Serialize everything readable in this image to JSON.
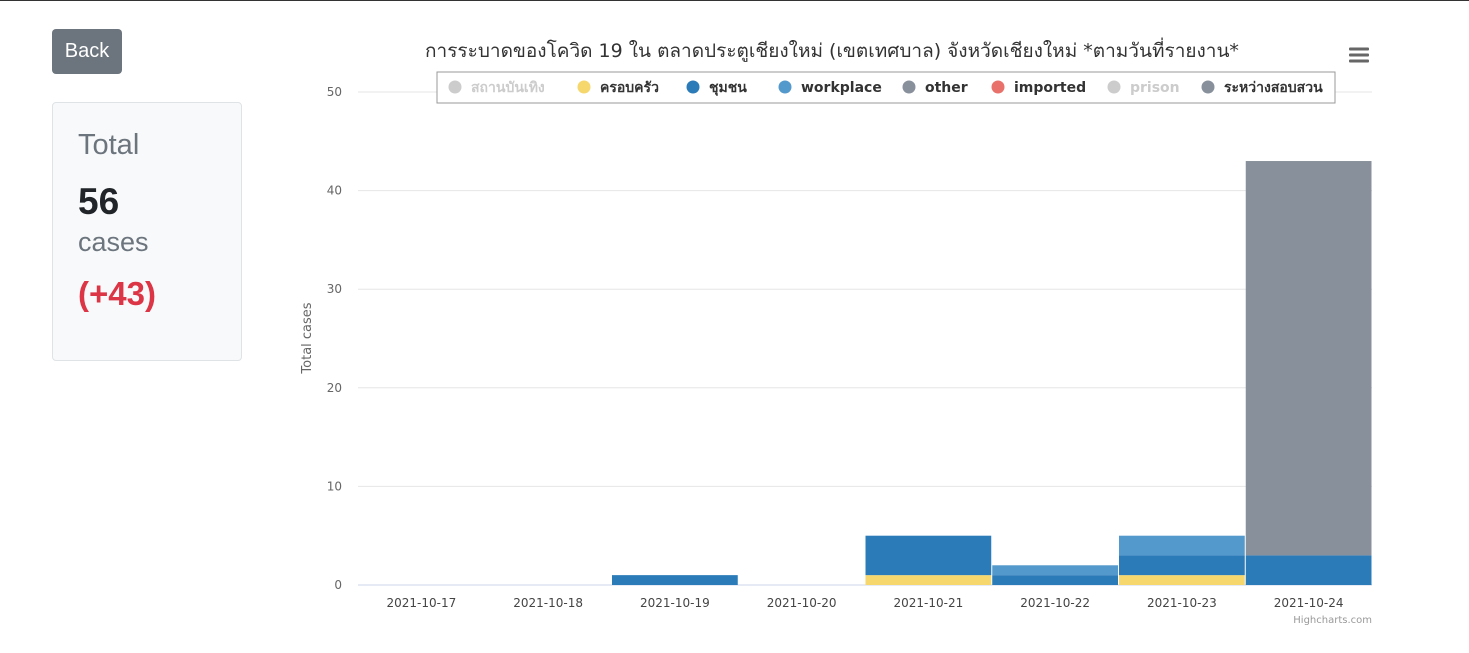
{
  "back_label": "Back",
  "summary": {
    "title": "Total",
    "count": "56",
    "unit": "cases",
    "delta": "(+43)"
  },
  "credits": "Highcharts.com",
  "menu_icon": "hamburger-menu-icon",
  "colors": {
    "button_bg": "#6c757d",
    "delta_red": "#dc3545"
  },
  "chart_data": {
    "type": "bar",
    "stacked": true,
    "title": "การระบาดของโควิด 19 ใน ตลาดประตูเชียงใหม่ (เขตเทศบาล) จังหวัดเชียงใหม่ *ตามวันที่รายงาน*",
    "ylabel": "Total cases",
    "xlabel": "",
    "ylim": [
      0,
      50
    ],
    "yticks": [
      0,
      10,
      20,
      30,
      40,
      50
    ],
    "grid": true,
    "legend_position": "top",
    "categories": [
      "2021-10-17",
      "2021-10-18",
      "2021-10-19",
      "2021-10-20",
      "2021-10-21",
      "2021-10-22",
      "2021-10-23",
      "2021-10-24"
    ],
    "series": [
      {
        "name": "สถานบันเทิง",
        "color": "#cccccc",
        "visible": false,
        "values": [
          0,
          0,
          0,
          0,
          0,
          0,
          0,
          0
        ]
      },
      {
        "name": "ครอบครัว",
        "color": "#f5d76e",
        "visible": true,
        "values": [
          0,
          0,
          0,
          0,
          1,
          0,
          1,
          0
        ]
      },
      {
        "name": "ชุมชน",
        "color": "#2b7bb9",
        "visible": true,
        "values": [
          0,
          0,
          1,
          0,
          4,
          1,
          2,
          3
        ]
      },
      {
        "name": "workplace",
        "color": "#5499cc",
        "visible": true,
        "values": [
          0,
          0,
          0,
          0,
          0,
          1,
          2,
          0
        ]
      },
      {
        "name": "other",
        "color": "#88919b",
        "visible": true,
        "values": [
          0,
          0,
          0,
          0,
          0,
          0,
          0,
          0
        ]
      },
      {
        "name": "imported",
        "color": "#e8726b",
        "visible": true,
        "values": [
          0,
          0,
          0,
          0,
          0,
          0,
          0,
          0
        ]
      },
      {
        "name": "prison",
        "color": "#cccccc",
        "visible": false,
        "values": [
          0,
          0,
          0,
          0,
          0,
          0,
          0,
          0
        ]
      },
      {
        "name": "ระหว่างสอบสวน",
        "color": "#88919b",
        "visible": true,
        "values": [
          0,
          0,
          0,
          0,
          0,
          0,
          0,
          40
        ]
      }
    ]
  }
}
